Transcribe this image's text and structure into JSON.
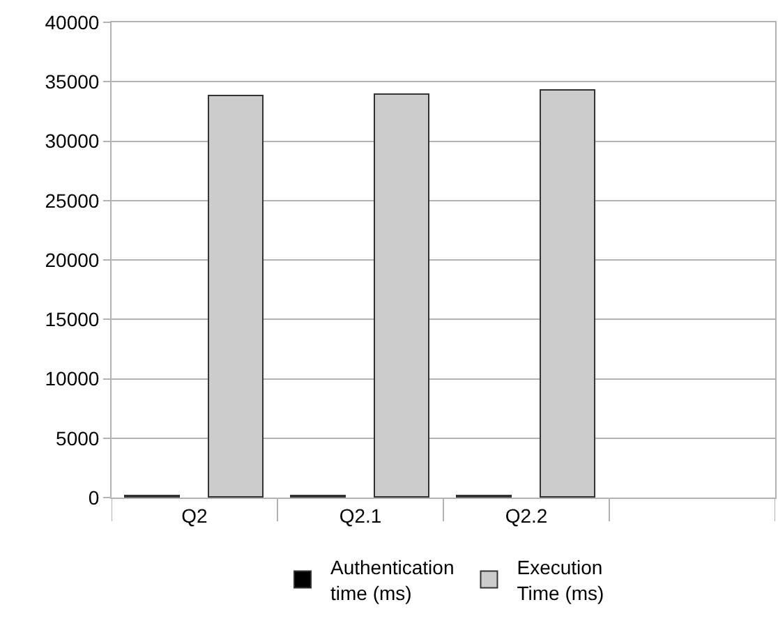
{
  "chart_data": {
    "type": "bar",
    "categories": [
      "Q2",
      "Q2.1",
      "Q2.2",
      null
    ],
    "series": [
      {
        "name": "Authentication time (ms)",
        "color": "#000000",
        "values": [
          150,
          150,
          150,
          null
        ]
      },
      {
        "name": "Execution Time (ms)",
        "color": "#cccccc",
        "values": [
          33800,
          33900,
          34200,
          null
        ]
      }
    ],
    "ylim": [
      0,
      40000
    ],
    "yticks": [
      0,
      5000,
      10000,
      15000,
      20000,
      25000,
      30000,
      35000,
      40000
    ],
    "grid": "y",
    "legend": "bottom"
  }
}
